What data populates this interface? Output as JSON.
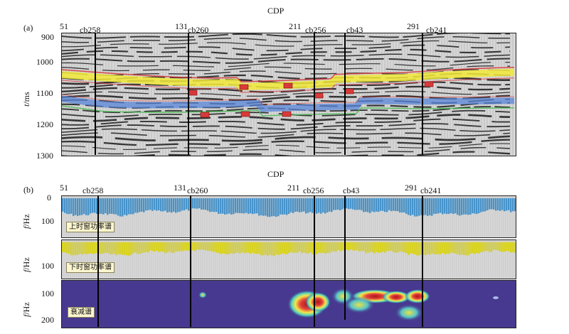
{
  "panel_a": {
    "letter": "(a)",
    "axis_title": "CDP",
    "cdp_ticks": [
      "51",
      "131",
      "211",
      "291"
    ],
    "wells": [
      "cb258",
      "cb260",
      "cb256",
      "cb43",
      "cb241"
    ],
    "y_label_italic": "t",
    "y_label_unit": "/ms",
    "y_ticks": [
      "900",
      "1000",
      "1100",
      "1200",
      "1300"
    ]
  },
  "panel_b": {
    "letter": "(b)",
    "axis_title": "CDP",
    "cdp_ticks": [
      "51",
      "131",
      "211",
      "291"
    ],
    "wells": [
      "cb258",
      "cb260",
      "cb256",
      "cb43",
      "cb241"
    ],
    "y_label_italic": "f",
    "y_label_unit": "/Hz",
    "upper_y_ticks": [
      "0",
      "100"
    ],
    "middle_y_ticks": [
      "100"
    ],
    "lower_y_ticks": [
      "100",
      "200"
    ],
    "upper_tag": "上时窗功率谱",
    "middle_tag": "下时窗功率谱",
    "lower_tag": "衰减谱"
  },
  "colors": {
    "upper_spectrum": "#3f8fc9",
    "lower_spectrum": "#d8d21a",
    "attenuation_bg": "#47398f",
    "horizon_yellow": "#f2ea3a",
    "horizon_red": "#d83a3a",
    "horizon_blue": "#5a86d8",
    "horizon_green": "#3fb84a"
  }
}
